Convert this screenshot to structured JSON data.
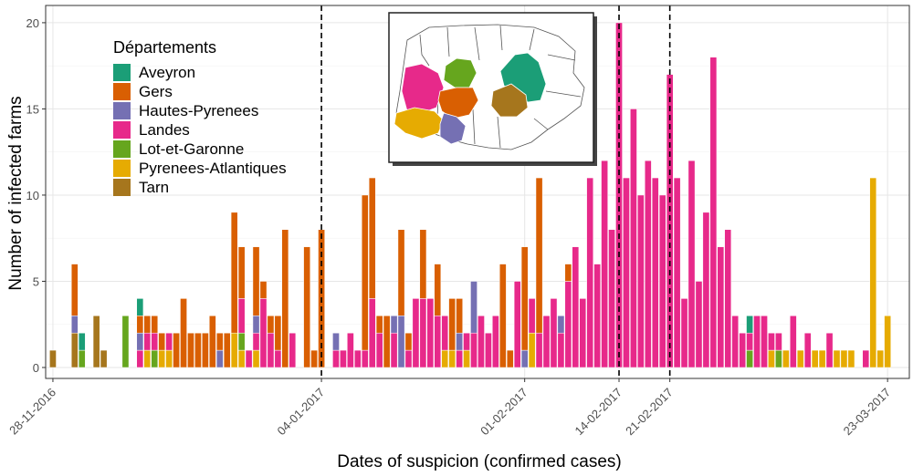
{
  "chart_data": {
    "type": "bar",
    "stacked": true,
    "xlabel": "Dates of suspicion (confirmed cases)",
    "ylabel": "Number of infected farms",
    "ylim": [
      0,
      21
    ],
    "yticks": [
      0,
      5,
      10,
      15,
      20
    ],
    "xlim": [
      -1,
      118
    ],
    "grid": true,
    "legend": {
      "title": "Départements",
      "placement": "top-left",
      "entries": [
        "Aveyron",
        "Gers",
        "Hautes-Pyrenees",
        "Landes",
        "Lot-et-Garonne",
        "Pyrenees-Atlantiques",
        "Tarn"
      ]
    },
    "colors": {
      "Aveyron": "#1B9E77",
      "Gers": "#D95F02",
      "Hautes-Pyrenees": "#7570B3",
      "Landes": "#E7298A",
      "Lot-et-Garonne": "#66A61E",
      "Pyrenees-Atlantiques": "#E6AB02",
      "Tarn": "#A6761D"
    },
    "x_tick_labels": [
      {
        "label": "28-11-2016",
        "day": 0
      },
      {
        "label": "04-01-2017",
        "day": 37
      },
      {
        "label": "01-02-2017",
        "day": 65
      },
      {
        "label": "14-02-2017",
        "day": 78
      },
      {
        "label": "21-02-2017",
        "day": 85
      },
      {
        "label": "23-03-2017",
        "day": 115
      }
    ],
    "vlines_dashed": [
      {
        "date": "04-01-2017",
        "day": 37
      },
      {
        "date": "14-02-2017",
        "day": 78
      },
      {
        "date": "21-02-2017",
        "day": 85
      }
    ],
    "bars": [
      {
        "day": 0,
        "Tarn": 1
      },
      {
        "day": 3,
        "Gers": 3,
        "Hautes-Pyrenees": 1,
        "Tarn": 2
      },
      {
        "day": 4,
        "Aveyron": 1,
        "Lot-et-Garonne": 1
      },
      {
        "day": 6,
        "Tarn": 3
      },
      {
        "day": 7,
        "Tarn": 1
      },
      {
        "day": 10,
        "Lot-et-Garonne": 3
      },
      {
        "day": 12,
        "Aveyron": 1,
        "Landes": 1,
        "Gers": 1,
        "Hautes-Pyrenees": 1
      },
      {
        "day": 13,
        "Gers": 1,
        "Landes": 1,
        "Pyrenees-Atlantiques": 1
      },
      {
        "day": 14,
        "Gers": 1,
        "Landes": 1,
        "Lot-et-Garonne": 1
      },
      {
        "day": 15,
        "Gers": 1,
        "Pyrenees-Atlantiques": 1
      },
      {
        "day": 16,
        "Landes": 1,
        "Pyrenees-Atlantiques": 1
      },
      {
        "day": 17,
        "Gers": 2
      },
      {
        "day": 18,
        "Gers": 4
      },
      {
        "day": 19,
        "Gers": 2
      },
      {
        "day": 20,
        "Gers": 2
      },
      {
        "day": 21,
        "Gers": 2
      },
      {
        "day": 22,
        "Gers": 3
      },
      {
        "day": 23,
        "Gers": 1,
        "Hautes-Pyrenees": 1
      },
      {
        "day": 24,
        "Gers": 2
      },
      {
        "day": 25,
        "Gers": 7,
        "Pyrenees-Atlantiques": 2
      },
      {
        "day": 26,
        "Gers": 3,
        "Landes": 2,
        "Lot-et-Garonne": 1,
        "Pyrenees-Atlantiques": 1
      },
      {
        "day": 27,
        "Landes": 1
      },
      {
        "day": 28,
        "Gers": 4,
        "Hautes-Pyrenees": 1,
        "Landes": 1,
        "Pyrenees-Atlantiques": 1
      },
      {
        "day": 29,
        "Gers": 1,
        "Landes": 4
      },
      {
        "day": 30,
        "Gers": 1,
        "Landes": 2
      },
      {
        "day": 31,
        "Gers": 2,
        "Landes": 1
      },
      {
        "day": 32,
        "Gers": 8
      },
      {
        "day": 33,
        "Landes": 2
      },
      {
        "day": 35,
        "Gers": 7
      },
      {
        "day": 36,
        "Gers": 1
      },
      {
        "day": 37,
        "Gers": 8
      },
      {
        "day": 39,
        "Landes": 1,
        "Hautes-Pyrenees": 1
      },
      {
        "day": 40,
        "Landes": 1
      },
      {
        "day": 41,
        "Landes": 2
      },
      {
        "day": 42,
        "Landes": 1
      },
      {
        "day": 43,
        "Gers": 9,
        "Landes": 1
      },
      {
        "day": 44,
        "Gers": 7,
        "Landes": 4
      },
      {
        "day": 45,
        "Gers": 1,
        "Landes": 2
      },
      {
        "day": 46,
        "Gers": 3
      },
      {
        "day": 47,
        "Landes": 2,
        "Hautes-Pyrenees": 1
      },
      {
        "day": 48,
        "Gers": 5,
        "Hautes-Pyrenees": 3
      },
      {
        "day": 49,
        "Gers": 1,
        "Landes": 1
      },
      {
        "day": 50,
        "Landes": 4
      },
      {
        "day": 51,
        "Gers": 4,
        "Landes": 4
      },
      {
        "day": 52,
        "Landes": 4
      },
      {
        "day": 53,
        "Gers": 3,
        "Landes": 3
      },
      {
        "day": 54,
        "Landes": 2,
        "Pyrenees-Atlantiques": 1
      },
      {
        "day": 55,
        "Gers": 3,
        "Pyrenees-Atlantiques": 1
      },
      {
        "day": 56,
        "Gers": 2,
        "Landes": 1,
        "Hautes-Pyrenees": 1
      },
      {
        "day": 57,
        "Landes": 1,
        "Pyrenees-Atlantiques": 1
      },
      {
        "day": 58,
        "Landes": 2,
        "Hautes-Pyrenees": 3
      },
      {
        "day": 59,
        "Landes": 3
      },
      {
        "day": 60,
        "Landes": 2
      },
      {
        "day": 61,
        "Landes": 3
      },
      {
        "day": 62,
        "Gers": 6
      },
      {
        "day": 63,
        "Gers": 1
      },
      {
        "day": 64,
        "Landes": 5
      },
      {
        "day": 65,
        "Gers": 6,
        "Hautes-Pyrenees": 1
      },
      {
        "day": 66,
        "Landes": 2,
        "Pyrenees-Atlantiques": 2
      },
      {
        "day": 67,
        "Gers": 9,
        "Landes": 2
      },
      {
        "day": 68,
        "Landes": 3
      },
      {
        "day": 69,
        "Landes": 4
      },
      {
        "day": 70,
        "Landes": 2,
        "Hautes-Pyrenees": 1
      },
      {
        "day": 71,
        "Gers": 1,
        "Landes": 5
      },
      {
        "day": 72,
        "Landes": 7
      },
      {
        "day": 73,
        "Landes": 4
      },
      {
        "day": 74,
        "Landes": 11
      },
      {
        "day": 75,
        "Landes": 6
      },
      {
        "day": 76,
        "Landes": 12
      },
      {
        "day": 77,
        "Landes": 8
      },
      {
        "day": 78,
        "Landes": 20
      },
      {
        "day": 79,
        "Landes": 11
      },
      {
        "day": 80,
        "Landes": 15
      },
      {
        "day": 81,
        "Landes": 10
      },
      {
        "day": 82,
        "Landes": 12
      },
      {
        "day": 83,
        "Landes": 11
      },
      {
        "day": 84,
        "Landes": 10
      },
      {
        "day": 85,
        "Landes": 17
      },
      {
        "day": 86,
        "Landes": 11
      },
      {
        "day": 87,
        "Landes": 4
      },
      {
        "day": 88,
        "Landes": 12
      },
      {
        "day": 89,
        "Landes": 5
      },
      {
        "day": 90,
        "Landes": 9
      },
      {
        "day": 91,
        "Landes": 18
      },
      {
        "day": 92,
        "Landes": 7
      },
      {
        "day": 93,
        "Landes": 8
      },
      {
        "day": 94,
        "Landes": 3
      },
      {
        "day": 95,
        "Landes": 2
      },
      {
        "day": 96,
        "Aveyron": 1,
        "Lot-et-Garonne": 1,
        "Landes": 1
      },
      {
        "day": 97,
        "Landes": 3
      },
      {
        "day": 98,
        "Landes": 3
      },
      {
        "day": 99,
        "Landes": 1,
        "Pyrenees-Atlantiques": 1
      },
      {
        "day": 100,
        "Landes": 1,
        "Lot-et-Garonne": 1
      },
      {
        "day": 101,
        "Pyrenees-Atlantiques": 1
      },
      {
        "day": 102,
        "Landes": 3
      },
      {
        "day": 103,
        "Pyrenees-Atlantiques": 1
      },
      {
        "day": 104,
        "Landes": 2
      },
      {
        "day": 105,
        "Pyrenees-Atlantiques": 1
      },
      {
        "day": 106,
        "Pyrenees-Atlantiques": 1
      },
      {
        "day": 107,
        "Landes": 2
      },
      {
        "day": 108,
        "Pyrenees-Atlantiques": 1
      },
      {
        "day": 109,
        "Pyrenees-Atlantiques": 1
      },
      {
        "day": 110,
        "Pyrenees-Atlantiques": 1
      },
      {
        "day": 112,
        "Landes": 1
      },
      {
        "day": 113,
        "Pyrenees-Atlantiques": 11
      },
      {
        "day": 114,
        "Pyrenees-Atlantiques": 1
      },
      {
        "day": 115,
        "Pyrenees-Atlantiques": 3
      }
    ],
    "inset_map": {
      "regions_shown": [
        "Landes",
        "Lot-et-Garonne",
        "Gers",
        "Aveyron",
        "Tarn",
        "Pyrenees-Atlantiques",
        "Hautes-Pyrenees"
      ]
    }
  }
}
